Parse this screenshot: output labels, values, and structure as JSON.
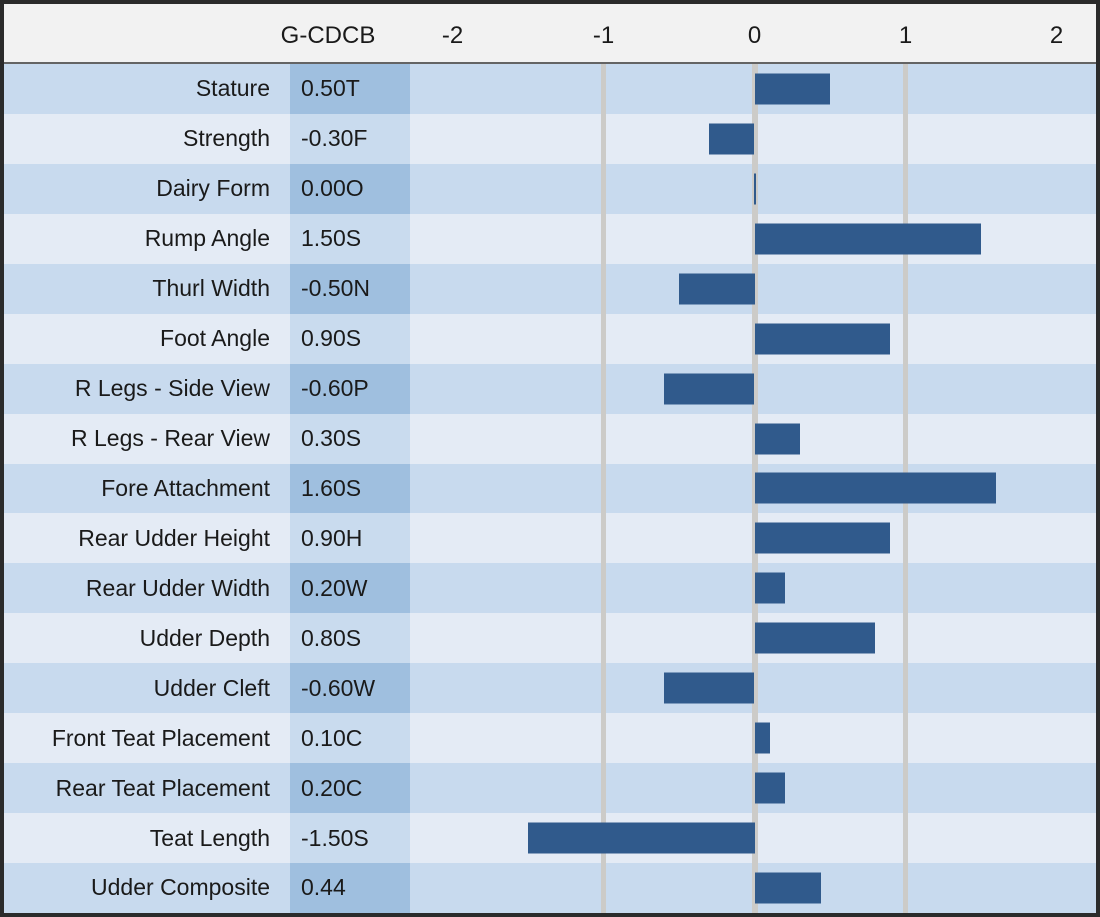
{
  "header": {
    "value_column_label": "G-CDCB"
  },
  "chart_data": {
    "type": "bar",
    "orientation": "horizontal",
    "title": "",
    "xlabel": "",
    "ylabel": "",
    "xlim": [
      -2.28,
      2.26
    ],
    "x_ticks": [
      "-2",
      "-1",
      "0",
      "1",
      "2"
    ],
    "gridline_ticks": [
      -1,
      0,
      1
    ],
    "legend": null,
    "rows": [
      {
        "label": "Stature",
        "value_label": "0.50T",
        "value": 0.5
      },
      {
        "label": "Strength",
        "value_label": "-0.30F",
        "value": -0.3
      },
      {
        "label": "Dairy Form",
        "value_label": "0.00O",
        "value": 0.0
      },
      {
        "label": "Rump Angle",
        "value_label": "1.50S",
        "value": 1.5
      },
      {
        "label": "Thurl Width",
        "value_label": "-0.50N",
        "value": -0.5
      },
      {
        "label": "Foot Angle",
        "value_label": "0.90S",
        "value": 0.9
      },
      {
        "label": "R Legs - Side View",
        "value_label": "-0.60P",
        "value": -0.6
      },
      {
        "label": "R Legs - Rear View",
        "value_label": "0.30S",
        "value": 0.3
      },
      {
        "label": "Fore Attachment",
        "value_label": "1.60S",
        "value": 1.6
      },
      {
        "label": "Rear Udder Height",
        "value_label": "0.90H",
        "value": 0.9
      },
      {
        "label": "Rear Udder Width",
        "value_label": "0.20W",
        "value": 0.2
      },
      {
        "label": "Udder Depth",
        "value_label": "0.80S",
        "value": 0.8
      },
      {
        "label": "Udder Cleft",
        "value_label": "-0.60W",
        "value": -0.6
      },
      {
        "label": "Front Teat Placement",
        "value_label": "0.10C",
        "value": 0.1
      },
      {
        "label": "Rear Teat Placement",
        "value_label": "0.20C",
        "value": 0.2
      },
      {
        "label": "Teat Length",
        "value_label": "-1.50S",
        "value": -1.5
      },
      {
        "label": "Udder Composite",
        "value_label": "0.44",
        "value": 0.44
      }
    ]
  },
  "colors": {
    "bar": "#305A8C",
    "row_dark_bg": "#C8DAEE",
    "row_light_bg": "#E4EBF5",
    "value_cell_dark_bg": "#9FBFDF",
    "value_cell_light_bg": "#C9DBEE",
    "header_bg": "#F2F2F2",
    "gridline": "#CCCBC8",
    "frame_border": "#2B2B2B",
    "text": "#1A1A1A"
  }
}
